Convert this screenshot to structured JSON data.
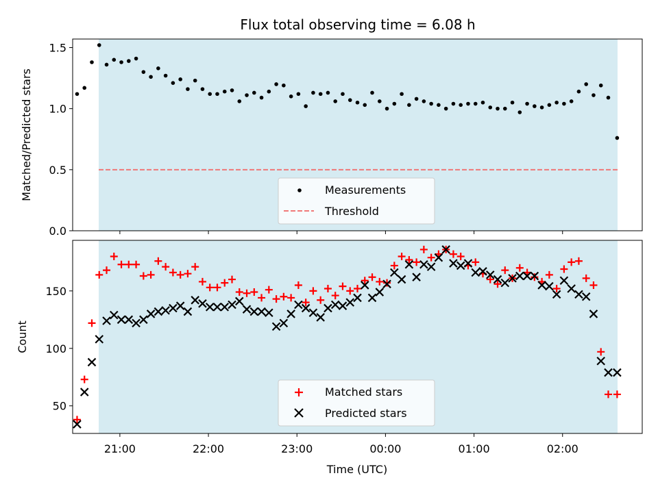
{
  "chart_data": [
    {
      "type": "scatter",
      "title": "Flux total observing time = 6.08 h",
      "xlabel": "",
      "ylabel": "Matched/Predicted stars",
      "xlim": [
        "20:28",
        "02:54"
      ],
      "ylim": [
        0,
        1.57
      ],
      "yticks": [
        "0.0",
        "0.5",
        "1.0",
        "1.5"
      ],
      "shaded_span": [
        "20:31",
        "02:37"
      ],
      "grid": false,
      "legend_placement": "lower-center",
      "series": [
        {
          "name": "Measurements",
          "color": "#000000",
          "marker": "dot",
          "x": [
            "20:31",
            "20:36",
            "20:41",
            "20:46",
            "20:51",
            "20:56",
            "21:01",
            "21:06",
            "21:11",
            "21:16",
            "21:21",
            "21:26",
            "21:31",
            "21:36",
            "21:41",
            "21:46",
            "21:51",
            "21:56",
            "22:01",
            "22:06",
            "22:11",
            "22:16",
            "22:21",
            "22:26",
            "22:31",
            "22:36",
            "22:41",
            "22:46",
            "22:51",
            "22:56",
            "23:01",
            "23:06",
            "23:11",
            "23:16",
            "23:21",
            "23:26",
            "23:31",
            "23:36",
            "23:41",
            "23:46",
            "23:51",
            "23:56",
            "00:01",
            "00:06",
            "00:11",
            "00:16",
            "00:21",
            "00:26",
            "00:31",
            "00:36",
            "00:41",
            "00:46",
            "00:51",
            "00:56",
            "01:01",
            "01:06",
            "01:11",
            "01:16",
            "01:21",
            "01:26",
            "01:31",
            "01:36",
            "01:41",
            "01:46",
            "01:51",
            "01:56",
            "02:01",
            "02:06",
            "02:11",
            "02:16",
            "02:21",
            "02:26",
            "02:31",
            "02:37"
          ],
          "values": [
            1.12,
            1.17,
            1.38,
            1.52,
            1.36,
            1.4,
            1.38,
            1.39,
            1.41,
            1.3,
            1.26,
            1.33,
            1.27,
            1.21,
            1.24,
            1.16,
            1.23,
            1.16,
            1.12,
            1.12,
            1.14,
            1.15,
            1.06,
            1.11,
            1.13,
            1.09,
            1.14,
            1.2,
            1.19,
            1.1,
            1.12,
            1.02,
            1.13,
            1.12,
            1.13,
            1.06,
            1.12,
            1.07,
            1.05,
            1.03,
            1.13,
            1.06,
            1.0,
            1.04,
            1.12,
            1.03,
            1.08,
            1.06,
            1.04,
            1.03,
            1.0,
            1.04,
            1.03,
            1.04,
            1.04,
            1.05,
            1.01,
            1.0,
            1.0,
            1.05,
            0.97,
            1.04,
            1.02,
            1.01,
            1.03,
            1.05,
            1.04,
            1.06,
            1.14,
            1.2,
            1.11,
            1.19,
            1.09,
            0.76
          ]
        },
        {
          "name": "Threshold",
          "color": "#f07878",
          "style": "dashed",
          "value": 0.5
        }
      ]
    },
    {
      "type": "scatter",
      "title": "",
      "xlabel": "Time (UTC)",
      "ylabel": "Count",
      "xlim": [
        "20:28",
        "02:54"
      ],
      "ylim": [
        26,
        194
      ],
      "xticks": [
        "21:00",
        "22:00",
        "23:00",
        "00:00",
        "01:00",
        "02:00"
      ],
      "yticks": [
        "50",
        "100",
        "150"
      ],
      "shaded_span": [
        "20:31",
        "02:37"
      ],
      "grid": false,
      "legend_placement": "lower-center",
      "series": [
        {
          "name": "Matched stars",
          "color": "#ff0000",
          "marker": "plus",
          "x": [
            "20:31",
            "20:36",
            "20:41",
            "20:46",
            "20:51",
            "20:56",
            "21:01",
            "21:06",
            "21:11",
            "21:16",
            "21:21",
            "21:26",
            "21:31",
            "21:36",
            "21:41",
            "21:46",
            "21:51",
            "21:56",
            "22:01",
            "22:06",
            "22:11",
            "22:16",
            "22:21",
            "22:26",
            "22:31",
            "22:36",
            "22:41",
            "22:46",
            "22:51",
            "22:56",
            "23:01",
            "23:06",
            "23:11",
            "23:16",
            "23:21",
            "23:26",
            "23:31",
            "23:36",
            "23:41",
            "23:46",
            "23:51",
            "23:56",
            "00:01",
            "00:06",
            "00:11",
            "00:16",
            "00:21",
            "00:26",
            "00:31",
            "00:36",
            "00:41",
            "00:46",
            "00:51",
            "00:56",
            "01:01",
            "01:06",
            "01:11",
            "01:16",
            "01:21",
            "01:26",
            "01:31",
            "01:36",
            "01:41",
            "01:46",
            "01:51",
            "01:56",
            "02:01",
            "02:06",
            "02:11",
            "02:16",
            "02:21",
            "02:26",
            "02:31",
            "02:37"
          ],
          "values": [
            38,
            73,
            122,
            164,
            168,
            180,
            173,
            173,
            173,
            163,
            164,
            176,
            171,
            166,
            164,
            165,
            171,
            158,
            153,
            153,
            157,
            160,
            149,
            148,
            149,
            144,
            151,
            143,
            145,
            144,
            155,
            140,
            150,
            142,
            152,
            146,
            154,
            150,
            152,
            159,
            162,
            158,
            157,
            172,
            180,
            177,
            175,
            186,
            179,
            182,
            186,
            182,
            180,
            172,
            175,
            165,
            160,
            156,
            168,
            161,
            170,
            166,
            162,
            158,
            164,
            152,
            169,
            175,
            176,
            161,
            155,
            97,
            60,
            60
          ]
        },
        {
          "name": "Predicted stars",
          "color": "#000000",
          "marker": "x",
          "x": [
            "20:31",
            "20:36",
            "20:41",
            "20:46",
            "20:51",
            "20:56",
            "21:01",
            "21:06",
            "21:11",
            "21:16",
            "21:21",
            "21:26",
            "21:31",
            "21:36",
            "21:41",
            "21:46",
            "21:51",
            "21:56",
            "22:01",
            "22:06",
            "22:11",
            "22:16",
            "22:21",
            "22:26",
            "22:31",
            "22:36",
            "22:41",
            "22:46",
            "22:51",
            "22:56",
            "23:01",
            "23:06",
            "23:11",
            "23:16",
            "23:21",
            "23:26",
            "23:31",
            "23:36",
            "23:41",
            "23:46",
            "23:51",
            "23:56",
            "00:01",
            "00:06",
            "00:11",
            "00:16",
            "00:21",
            "00:26",
            "00:31",
            "00:36",
            "00:41",
            "00:46",
            "00:51",
            "00:56",
            "01:01",
            "01:06",
            "01:11",
            "01:16",
            "01:21",
            "01:26",
            "01:31",
            "01:36",
            "01:41",
            "01:46",
            "01:51",
            "01:56",
            "02:01",
            "02:06",
            "02:11",
            "02:16",
            "02:21",
            "02:26",
            "02:31",
            "02:37"
          ],
          "values": [
            34,
            62,
            88,
            108,
            124,
            129,
            125,
            125,
            122,
            125,
            130,
            132,
            133,
            135,
            137,
            132,
            142,
            139,
            136,
            136,
            136,
            138,
            141,
            134,
            132,
            132,
            131,
            119,
            122,
            130,
            138,
            135,
            131,
            127,
            135,
            138,
            137,
            140,
            144,
            155,
            144,
            149,
            156,
            166,
            160,
            173,
            162,
            173,
            171,
            179,
            186,
            174,
            172,
            174,
            166,
            167,
            164,
            160,
            157,
            161,
            163,
            163,
            163,
            155,
            154,
            147,
            159,
            152,
            147,
            145,
            130,
            89,
            79,
            79
          ]
        }
      ]
    }
  ]
}
